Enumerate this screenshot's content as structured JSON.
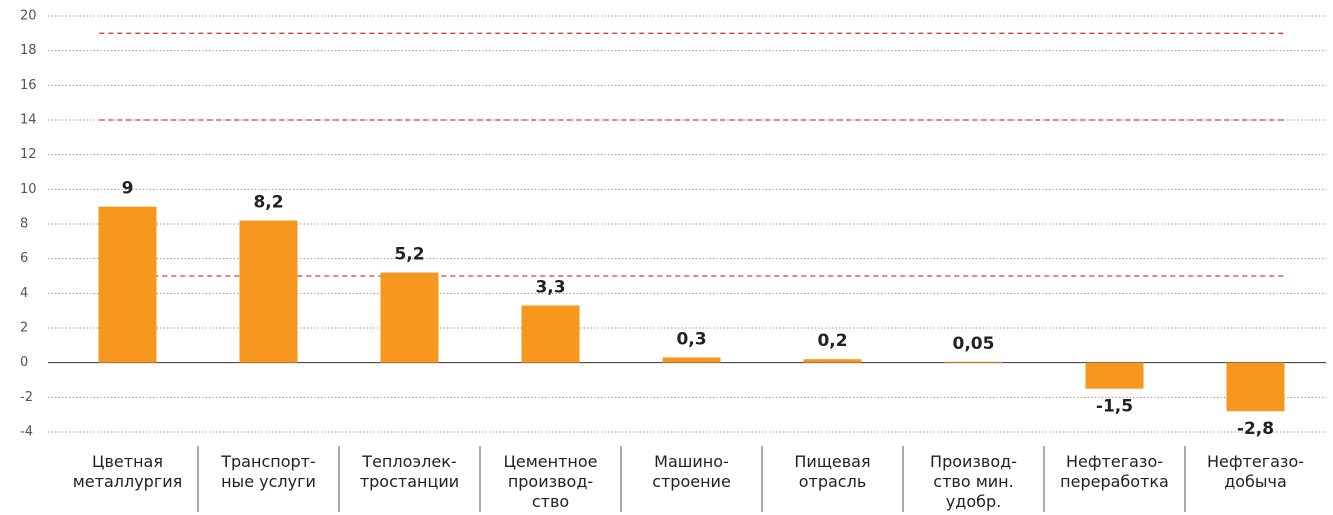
{
  "chart_data": {
    "type": "bar",
    "categories": [
      [
        "Цветная",
        "металлургия"
      ],
      [
        "Транспорт-",
        "ные услуги"
      ],
      [
        "Теплоэлек-",
        "тростанции"
      ],
      [
        "Цементное",
        "производ-",
        "ство"
      ],
      [
        "Машино-",
        "строение"
      ],
      [
        "Пищевая",
        "отрасль"
      ],
      [
        "Производ-",
        "ство мин.",
        "удобр."
      ],
      [
        "Нефтегазо-",
        "переработка"
      ],
      [
        "Нефтегазо-",
        "добыча"
      ]
    ],
    "values": [
      9,
      8.2,
      5.2,
      3.3,
      0.3,
      0.2,
      0.05,
      -1.5,
      -2.8
    ],
    "value_labels": [
      "9",
      "8,2",
      "5,2",
      "3,3",
      "0,3",
      "0,2",
      "0,05",
      "-1,5",
      "-2,8"
    ],
    "color": "#f7971e",
    "ylim": [
      -4,
      20
    ],
    "yticks": [
      -4,
      -2,
      0,
      2,
      4,
      6,
      8,
      10,
      12,
      14,
      16,
      18,
      20
    ],
    "grid": true,
    "reference_lines": [
      19,
      14,
      5
    ],
    "reference_color": "#e53935"
  }
}
